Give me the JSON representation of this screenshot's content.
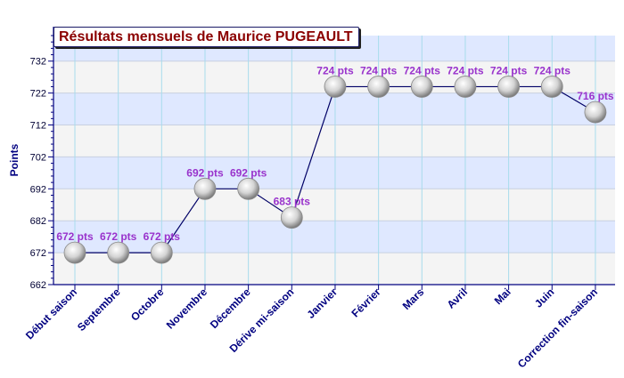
{
  "chart_data": {
    "type": "line",
    "title": "Résultats mensuels de Maurice PUGEAULT",
    "ylabel": "Points",
    "xlabel": "",
    "ylim": [
      662,
      740
    ],
    "yticks": [
      662,
      672,
      682,
      692,
      702,
      712,
      722,
      732
    ],
    "categories": [
      "Début saison",
      "Septembre",
      "Octobre",
      "Novembre",
      "Décembre",
      "Dérive mi-saison",
      "Janvier",
      "Février",
      "Mars",
      "Avril",
      "Mai",
      "Juin",
      "Correction fin-saison"
    ],
    "values": [
      672,
      672,
      672,
      692,
      692,
      683,
      724,
      724,
      724,
      724,
      724,
      724,
      716
    ],
    "data_labels": [
      "672 pts",
      "672 pts",
      "672 pts",
      "692 pts",
      "692 pts",
      "683 pts",
      "724 pts",
      "724 pts",
      "724 pts",
      "724 pts",
      "724 pts",
      "724 pts",
      "716 pts"
    ],
    "grid": true,
    "colors": {
      "title": "#8b0000",
      "axis": "#000080",
      "line": "#000066",
      "label": "#9933cc",
      "band_light": "#f4f4f4",
      "band_blue": "#dfe8ff",
      "vgrid": "#a8dcec"
    }
  }
}
